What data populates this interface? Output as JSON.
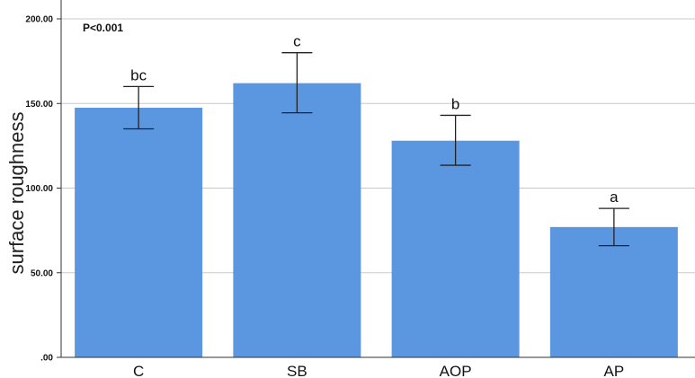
{
  "chart_data": {
    "type": "bar",
    "categories": [
      "C",
      "SB",
      "AOP",
      "AP"
    ],
    "values": [
      147.5,
      162.0,
      128.0,
      77.0
    ],
    "error_high": [
      160.0,
      180.0,
      143.0,
      88.0
    ],
    "error_low": [
      135.0,
      144.5,
      113.5,
      66.0
    ],
    "significance_letters": [
      "bc",
      "c",
      "b",
      "a"
    ],
    "annotation": "P<0.001",
    "xlabel": "",
    "ylabel": "surface roughness",
    "yticks": [
      ".00",
      "50.00",
      "100.00",
      "150.00",
      "200.00"
    ],
    "ytick_values": [
      0,
      50,
      100,
      150,
      200
    ],
    "ylim": [
      0,
      200
    ],
    "grid": "horizontal",
    "colors": {
      "bar": "#5a97e0",
      "grid": "#c8c8c8",
      "axis": "#333333",
      "error": "#222222"
    }
  }
}
